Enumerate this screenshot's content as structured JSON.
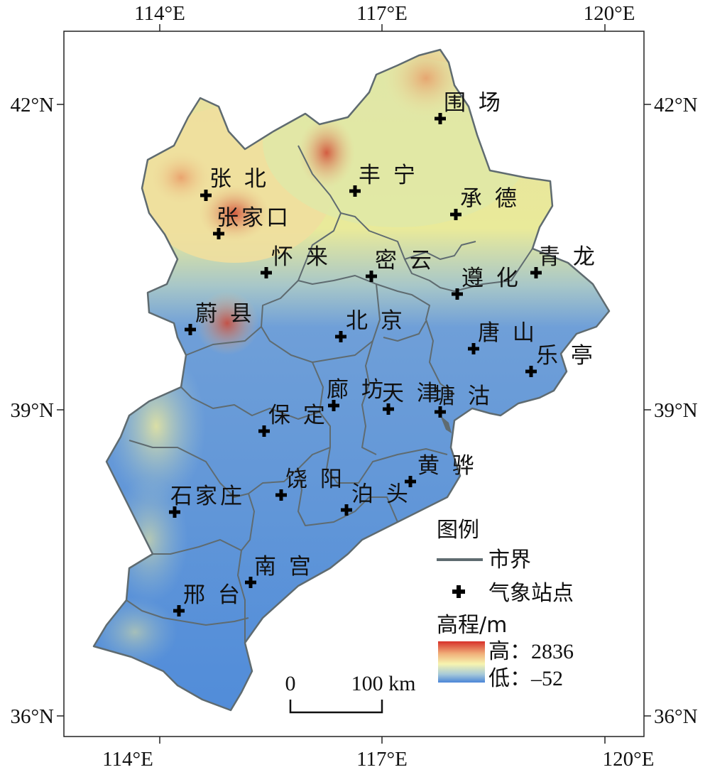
{
  "axes": {
    "lon_labels": [
      "114°E",
      "117°E",
      "120°E"
    ],
    "lat_labels": [
      "42°N",
      "39°N",
      "36°N"
    ]
  },
  "stations": [
    {
      "name": "围 场"
    },
    {
      "name": "张 北"
    },
    {
      "name": "丰 宁"
    },
    {
      "name": "承 德"
    },
    {
      "name": "张家口"
    },
    {
      "name": "怀 来"
    },
    {
      "name": "密 云"
    },
    {
      "name": "青 龙"
    },
    {
      "name": "遵 化"
    },
    {
      "name": "蔚 县"
    },
    {
      "name": "北 京"
    },
    {
      "name": "唐 山"
    },
    {
      "name": "乐 亭"
    },
    {
      "name": "廊 坊"
    },
    {
      "name": "天 津"
    },
    {
      "name": "塘 沽"
    },
    {
      "name": "保 定"
    },
    {
      "name": "黄 骅"
    },
    {
      "name": "石家庄"
    },
    {
      "name": "饶 阳"
    },
    {
      "name": "泊 头"
    },
    {
      "name": "南 宫"
    },
    {
      "name": "邢 台"
    }
  ],
  "legend": {
    "title": "图例",
    "boundary_label": "市界",
    "station_label": "气象站点",
    "elevation_title": "高程/m",
    "high_label": "高：",
    "high_value": "2836",
    "low_label": "低：",
    "low_value": "–52"
  },
  "scalebar": {
    "zero": "0",
    "distance": "100 km"
  },
  "colors": {
    "boundary": "#5f6b70",
    "elev_high": "#d7302a",
    "elev_mid": "#f6f4b0",
    "elev_low": "#4b86d8"
  }
}
